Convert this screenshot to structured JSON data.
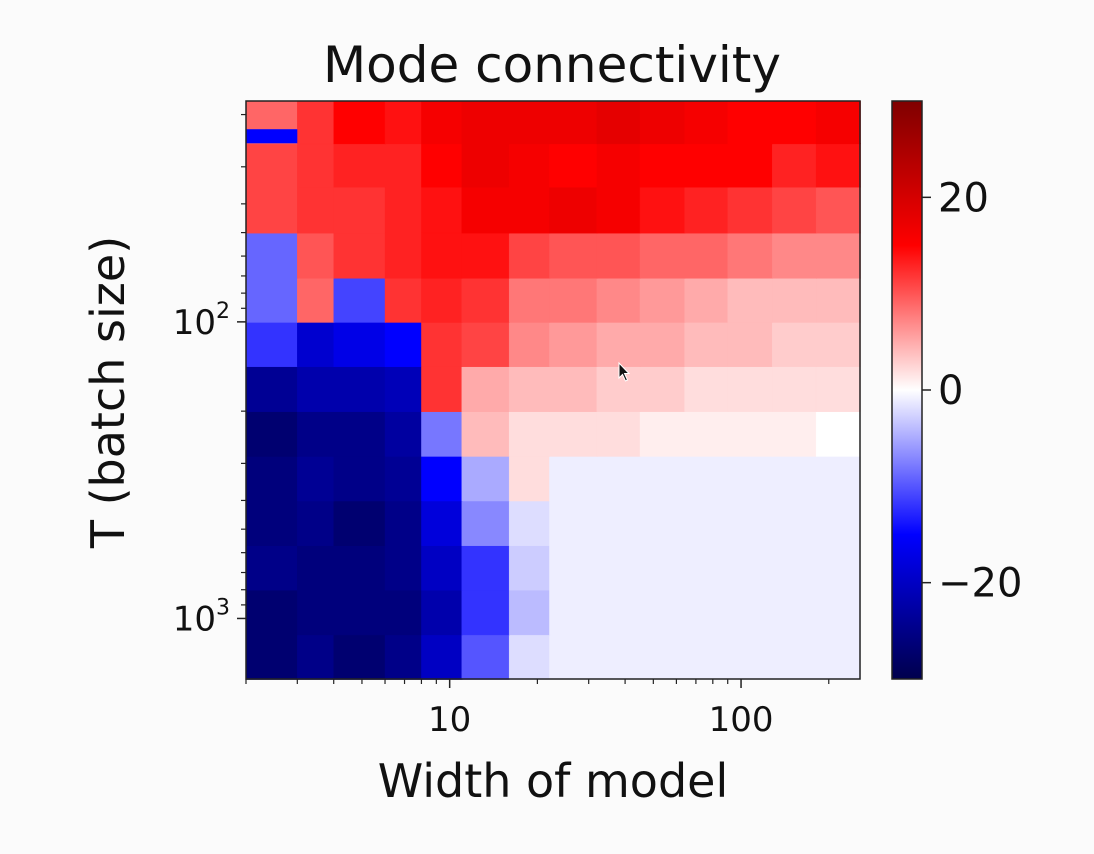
{
  "chart_data": {
    "type": "heatmap",
    "title": "Mode connectivity",
    "xlabel": "Width of model",
    "ylabel": "T (batch size)",
    "xscale": "log",
    "yscale": "log",
    "y_inverted": true,
    "x_edges": [
      2,
      3,
      4,
      6,
      8,
      11,
      16,
      22,
      32,
      45,
      64,
      90,
      128,
      181,
      256
    ],
    "y_edges": [
      1600,
      1131,
      800,
      566,
      400,
      283,
      200,
      141,
      100,
      71,
      50,
      35,
      25,
      18
    ],
    "xtick_values": [
      10,
      100
    ],
    "xticks": [
      "10",
      "100"
    ],
    "ytick_values": [
      100,
      1000
    ],
    "yticks": [
      {
        "base": "10",
        "exp": "2"
      },
      {
        "base": "10",
        "exp": "3"
      }
    ],
    "values": [
      [
        -27,
        -25,
        -27,
        -25,
        -20,
        -10,
        -2,
        -1,
        -1,
        -1,
        -1,
        -1,
        -1,
        -1
      ],
      [
        -27,
        -26,
        -26,
        -26,
        -22,
        -12,
        -4,
        -1,
        -1,
        -1,
        -1,
        -1,
        -1,
        -1
      ],
      [
        -25,
        -26,
        -26,
        -25,
        -20,
        -12,
        -3,
        -1,
        -1,
        -1,
        -1,
        -1,
        -1,
        -1
      ],
      [
        -26,
        -25,
        -27,
        -25,
        -18,
        -7,
        -2,
        -1,
        -1,
        -1,
        -1,
        -1,
        -1,
        -1
      ],
      [
        -26,
        -24,
        -25,
        -24,
        -15,
        -5,
        2,
        -1,
        -1,
        -1,
        -1,
        -1,
        -1,
        -1
      ],
      [
        -27,
        -25,
        -25,
        -23,
        -8,
        4,
        2,
        2,
        2,
        1,
        1,
        1,
        1,
        0
      ],
      [
        -24,
        -22,
        -22,
        -21,
        12,
        5,
        4,
        4,
        3,
        3,
        2,
        2,
        2,
        2
      ],
      [
        -12,
        -19,
        -17,
        -15,
        12,
        11,
        7,
        6,
        5,
        5,
        4,
        4,
        3,
        3
      ],
      [
        -9,
        9,
        -11,
        12,
        13,
        12,
        8,
        8,
        7,
        6,
        5,
        4,
        4,
        4
      ],
      [
        -9,
        10,
        12,
        13,
        14,
        14,
        11,
        10,
        10,
        9,
        9,
        8,
        7,
        7
      ],
      [
        11,
        12,
        12,
        13,
        14,
        16,
        16,
        17,
        16,
        14,
        13,
        12,
        11,
        10
      ],
      [
        11,
        12,
        13,
        13,
        15,
        17,
        16,
        15,
        16,
        15,
        15,
        15,
        13,
        14
      ],
      [
        9,
        12,
        15,
        14,
        16,
        17,
        17,
        17,
        18,
        17,
        16,
        15,
        15,
        16
      ],
      [
        -12,
        13,
        15,
        14,
        17,
        16,
        18,
        18,
        18,
        18,
        18,
        18,
        17,
        17
      ]
    ],
    "special_cells": [
      {
        "row": 12,
        "col": 0,
        "split": "bottom-third",
        "value": -15
      },
      {
        "row": 13,
        "col": 0,
        "split": "top-fifth",
        "value": -18
      }
    ],
    "colormap": "seismic",
    "colorbar": {
      "vmin": -30,
      "vmax": 30,
      "tick_values": [
        20,
        0,
        -20
      ],
      "ticks": [
        "20",
        "0",
        "−20"
      ]
    },
    "grid": false
  },
  "colors": {
    "background": "#fbfbfb",
    "text": "#111111",
    "spine": "#222222"
  },
  "icons": {
    "cursor": "mouse-pointer-icon"
  }
}
